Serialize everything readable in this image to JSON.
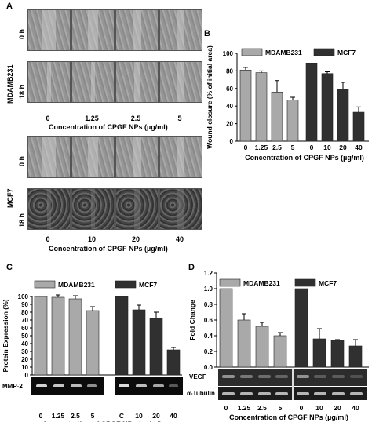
{
  "panelA": {
    "label": "A",
    "rows": [
      "0 h",
      "18 h"
    ],
    "cell_lines": [
      "MDAMB231",
      "MCF7"
    ],
    "mdamb_conc": [
      "0",
      "1.25",
      "2.5",
      "5"
    ],
    "mcf7_conc": [
      "0",
      "10",
      "20",
      "40"
    ],
    "xlabel": "Concentration of CPGF NPs (µg/ml)"
  },
  "chart_data": [
    {
      "panel": "B",
      "type": "bar",
      "ylabel": "Wound closure (% of initial area)",
      "xlabel": "Concentration of CPGF NPs (µg/ml)",
      "ylim": [
        0,
        100
      ],
      "yticks": [
        "0",
        "20",
        "40",
        "60",
        "80",
        "100"
      ],
      "series": [
        {
          "name": "MDAMB231",
          "categories": [
            "0",
            "1.25",
            "2.5",
            "5"
          ],
          "values": [
            81,
            78,
            56,
            47
          ],
          "errors": [
            3,
            2,
            13,
            3
          ],
          "color": "#a9a9a9"
        },
        {
          "name": "MCF7",
          "categories": [
            "0",
            "10",
            "20",
            "40"
          ],
          "values": [
            89,
            77,
            59,
            33
          ],
          "errors": [
            0,
            2,
            8,
            6
          ],
          "color": "#303030"
        }
      ]
    },
    {
      "panel": "C",
      "type": "bar",
      "ylabel": "Protein Expression (%)",
      "xlabel": "Concentration of CPGF NPs (µg/ml)",
      "ylim": [
        0,
        100
      ],
      "yticks": [
        "0",
        "10",
        "20",
        "30",
        "40",
        "50",
        "60",
        "70",
        "80",
        "90",
        "100"
      ],
      "blot_label": "MMP-2",
      "series": [
        {
          "name": "MDAMB231",
          "categories": [
            "0",
            "1.25",
            "2.5",
            "5"
          ],
          "values": [
            100,
            99,
            97,
            82
          ],
          "errors": [
            0,
            3,
            4,
            5
          ],
          "color": "#a9a9a9"
        },
        {
          "name": "MCF7",
          "categories": [
            "C",
            "10",
            "20",
            "40"
          ],
          "values": [
            100,
            83,
            72,
            32
          ],
          "errors": [
            0,
            6,
            8,
            3
          ],
          "color": "#303030"
        }
      ]
    },
    {
      "panel": "D",
      "type": "bar",
      "ylabel": "Fold Change",
      "xlabel": "Concentration of CPGF NPs (µg/ml)",
      "ylim": [
        0,
        1.2
      ],
      "yticks": [
        "0.0",
        "0.2",
        "0.4",
        "0.6",
        "0.8",
        "1.0",
        "1.2"
      ],
      "blot_labels": [
        "VEGF",
        "α-Tubulin"
      ],
      "series": [
        {
          "name": "MDAMB231",
          "categories": [
            "0",
            "1.25",
            "2.5",
            "5"
          ],
          "values": [
            1.0,
            0.6,
            0.52,
            0.4
          ],
          "errors": [
            0,
            0.08,
            0.05,
            0.04
          ],
          "color": "#a9a9a9"
        },
        {
          "name": "MCF7",
          "categories": [
            "0",
            "10",
            "20",
            "40"
          ],
          "values": [
            1.0,
            0.36,
            0.34,
            0.27
          ],
          "errors": [
            0,
            0.13,
            0.01,
            0.08
          ],
          "color": "#303030"
        }
      ]
    }
  ]
}
